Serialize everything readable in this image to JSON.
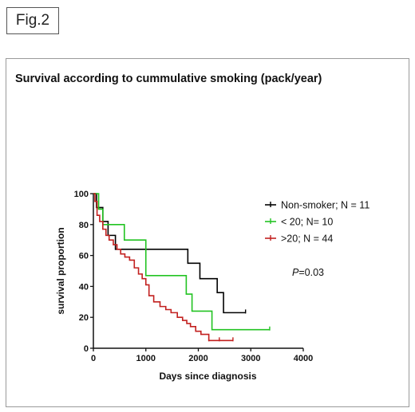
{
  "figure_label": "Fig.2",
  "chart_data": {
    "type": "line",
    "title": "Survival according to cummulative smoking (pack/year)",
    "xlabel": "Days since diagnosis",
    "ylabel": "survival proportion",
    "xlim": [
      0,
      4000
    ],
    "ylim": [
      0,
      100
    ],
    "x_ticks": [
      "0",
      "1000",
      "2000",
      "3000",
      "4000"
    ],
    "y_ticks": [
      "0",
      "20",
      "40",
      "60",
      "80",
      "100"
    ],
    "legend_position": "right",
    "annotation_p": "P",
    "annotation_rest": "=0.03",
    "series": [
      {
        "name": "Non-smoker; N = 11",
        "color": "#000000",
        "x": [
          0,
          60,
          180,
          280,
          420,
          620,
          1800,
          2030,
          2360,
          2480,
          2900
        ],
        "y": [
          100,
          91,
          82,
          73,
          64,
          64,
          55,
          45,
          36,
          23,
          23
        ],
        "censor_x": [
          2900
        ]
      },
      {
        "name": "< 20; N= 10",
        "color": "#22c322",
        "x": [
          0,
          100,
          180,
          270,
          590,
          1000,
          1770,
          1880,
          2260,
          3360
        ],
        "y": [
          100,
          90,
          80,
          80,
          70,
          47,
          35,
          24,
          12,
          12
        ],
        "censor_x": [
          3360
        ]
      },
      {
        "name": ">20; N = 44",
        "color": "#c2201f",
        "x": [
          0,
          30,
          70,
          120,
          180,
          240,
          300,
          380,
          450,
          520,
          600,
          690,
          780,
          860,
          930,
          1000,
          1060,
          1150,
          1270,
          1380,
          1480,
          1600,
          1700,
          1780,
          1850,
          1950,
          2050,
          2200,
          2660
        ],
        "y": [
          100,
          95,
          86,
          82,
          77,
          73,
          70,
          67,
          64,
          61,
          59,
          57,
          52,
          48,
          45,
          41,
          34,
          30,
          27,
          25,
          23,
          20,
          18,
          16,
          14,
          11,
          9,
          5,
          5
        ],
        "censor_x": [
          2200,
          2400,
          2660
        ]
      }
    ]
  }
}
